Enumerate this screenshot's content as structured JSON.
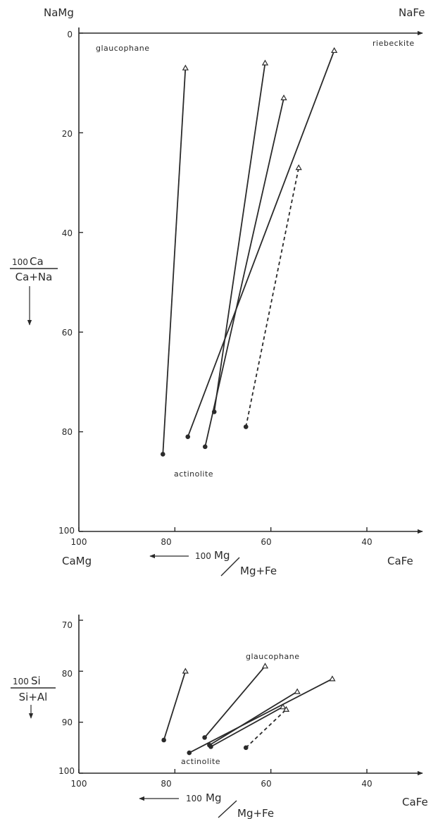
{
  "chart_data": [
    {
      "type": "line",
      "corner_labels": {
        "top_left": "NaMg",
        "top_right": "NaFe",
        "bottom_left": "CaMg",
        "bottom_right": "CaFe"
      },
      "xlabel": {
        "prefix": "100",
        "numerator": "Mg",
        "denominator": "Mg+Fe"
      },
      "ylabel": {
        "prefix": "100",
        "numerator": "Ca",
        "denominator": "Ca+Na"
      },
      "x_ticks": [
        "100",
        "80",
        "60",
        "40"
      ],
      "y_ticks": [
        "0",
        "20",
        "40",
        "60",
        "80",
        "100"
      ],
      "xlim": [
        100,
        30
      ],
      "ylim": [
        0,
        100
      ],
      "annotations": {
        "top_left": "glaucophane",
        "top_right": "riebeckite",
        "middle": "actinolite"
      },
      "series": [
        {
          "style": "solid",
          "points": [
            {
              "x": 82.5,
              "y": 84.5
            },
            {
              "x": 77.8,
              "y": 7
            }
          ]
        },
        {
          "style": "solid",
          "points": [
            {
              "x": 71.8,
              "y": 76
            },
            {
              "x": 61.2,
              "y": 6
            }
          ]
        },
        {
          "style": "solid",
          "points": [
            {
              "x": 73.7,
              "y": 83
            },
            {
              "x": 57.3,
              "y": 13
            }
          ]
        },
        {
          "style": "solid",
          "points": [
            {
              "x": 77.3,
              "y": 81
            },
            {
              "x": 46.8,
              "y": 3.5
            }
          ]
        },
        {
          "style": "dashed",
          "points": [
            {
              "x": 65.2,
              "y": 79
            },
            {
              "x": 54.2,
              "y": 27
            }
          ]
        }
      ]
    },
    {
      "type": "line",
      "corner_labels": {
        "bottom_right": "CaFe"
      },
      "xlabel": {
        "prefix": "100",
        "numerator": "Mg",
        "denominator": "Mg+Fe"
      },
      "ylabel": {
        "prefix": "100",
        "numerator": "Si",
        "denominator": "Si+Al"
      },
      "x_ticks": [
        "100",
        "80",
        "60",
        "40"
      ],
      "y_ticks": [
        "70",
        "80",
        "90",
        "100"
      ],
      "xlim": [
        100,
        30
      ],
      "ylim": [
        70,
        100
      ],
      "annotations": {
        "top": "glaucophane",
        "bottom": "actinolite"
      },
      "series": [
        {
          "style": "solid",
          "points": [
            {
              "x": 82.3,
              "y": 93.5
            },
            {
              "x": 77.8,
              "y": 80
            }
          ]
        },
        {
          "style": "solid",
          "points": [
            {
              "x": 73.8,
              "y": 93
            },
            {
              "x": 61.2,
              "y": 79
            }
          ]
        },
        {
          "style": "solid",
          "points": [
            {
              "x": 77,
              "y": 96
            },
            {
              "x": 47.2,
              "y": 81.5
            }
          ]
        },
        {
          "style": "solid",
          "points": [
            {
              "x": 72.8,
              "y": 94.5
            },
            {
              "x": 54.5,
              "y": 84
            }
          ]
        },
        {
          "style": "solid",
          "points": [
            {
              "x": 72.5,
              "y": 94.8
            },
            {
              "x": 57.5,
              "y": 87
            }
          ]
        },
        {
          "style": "dashed",
          "points": [
            {
              "x": 65.2,
              "y": 95
            },
            {
              "x": 56.8,
              "y": 87.5
            }
          ]
        }
      ]
    }
  ]
}
